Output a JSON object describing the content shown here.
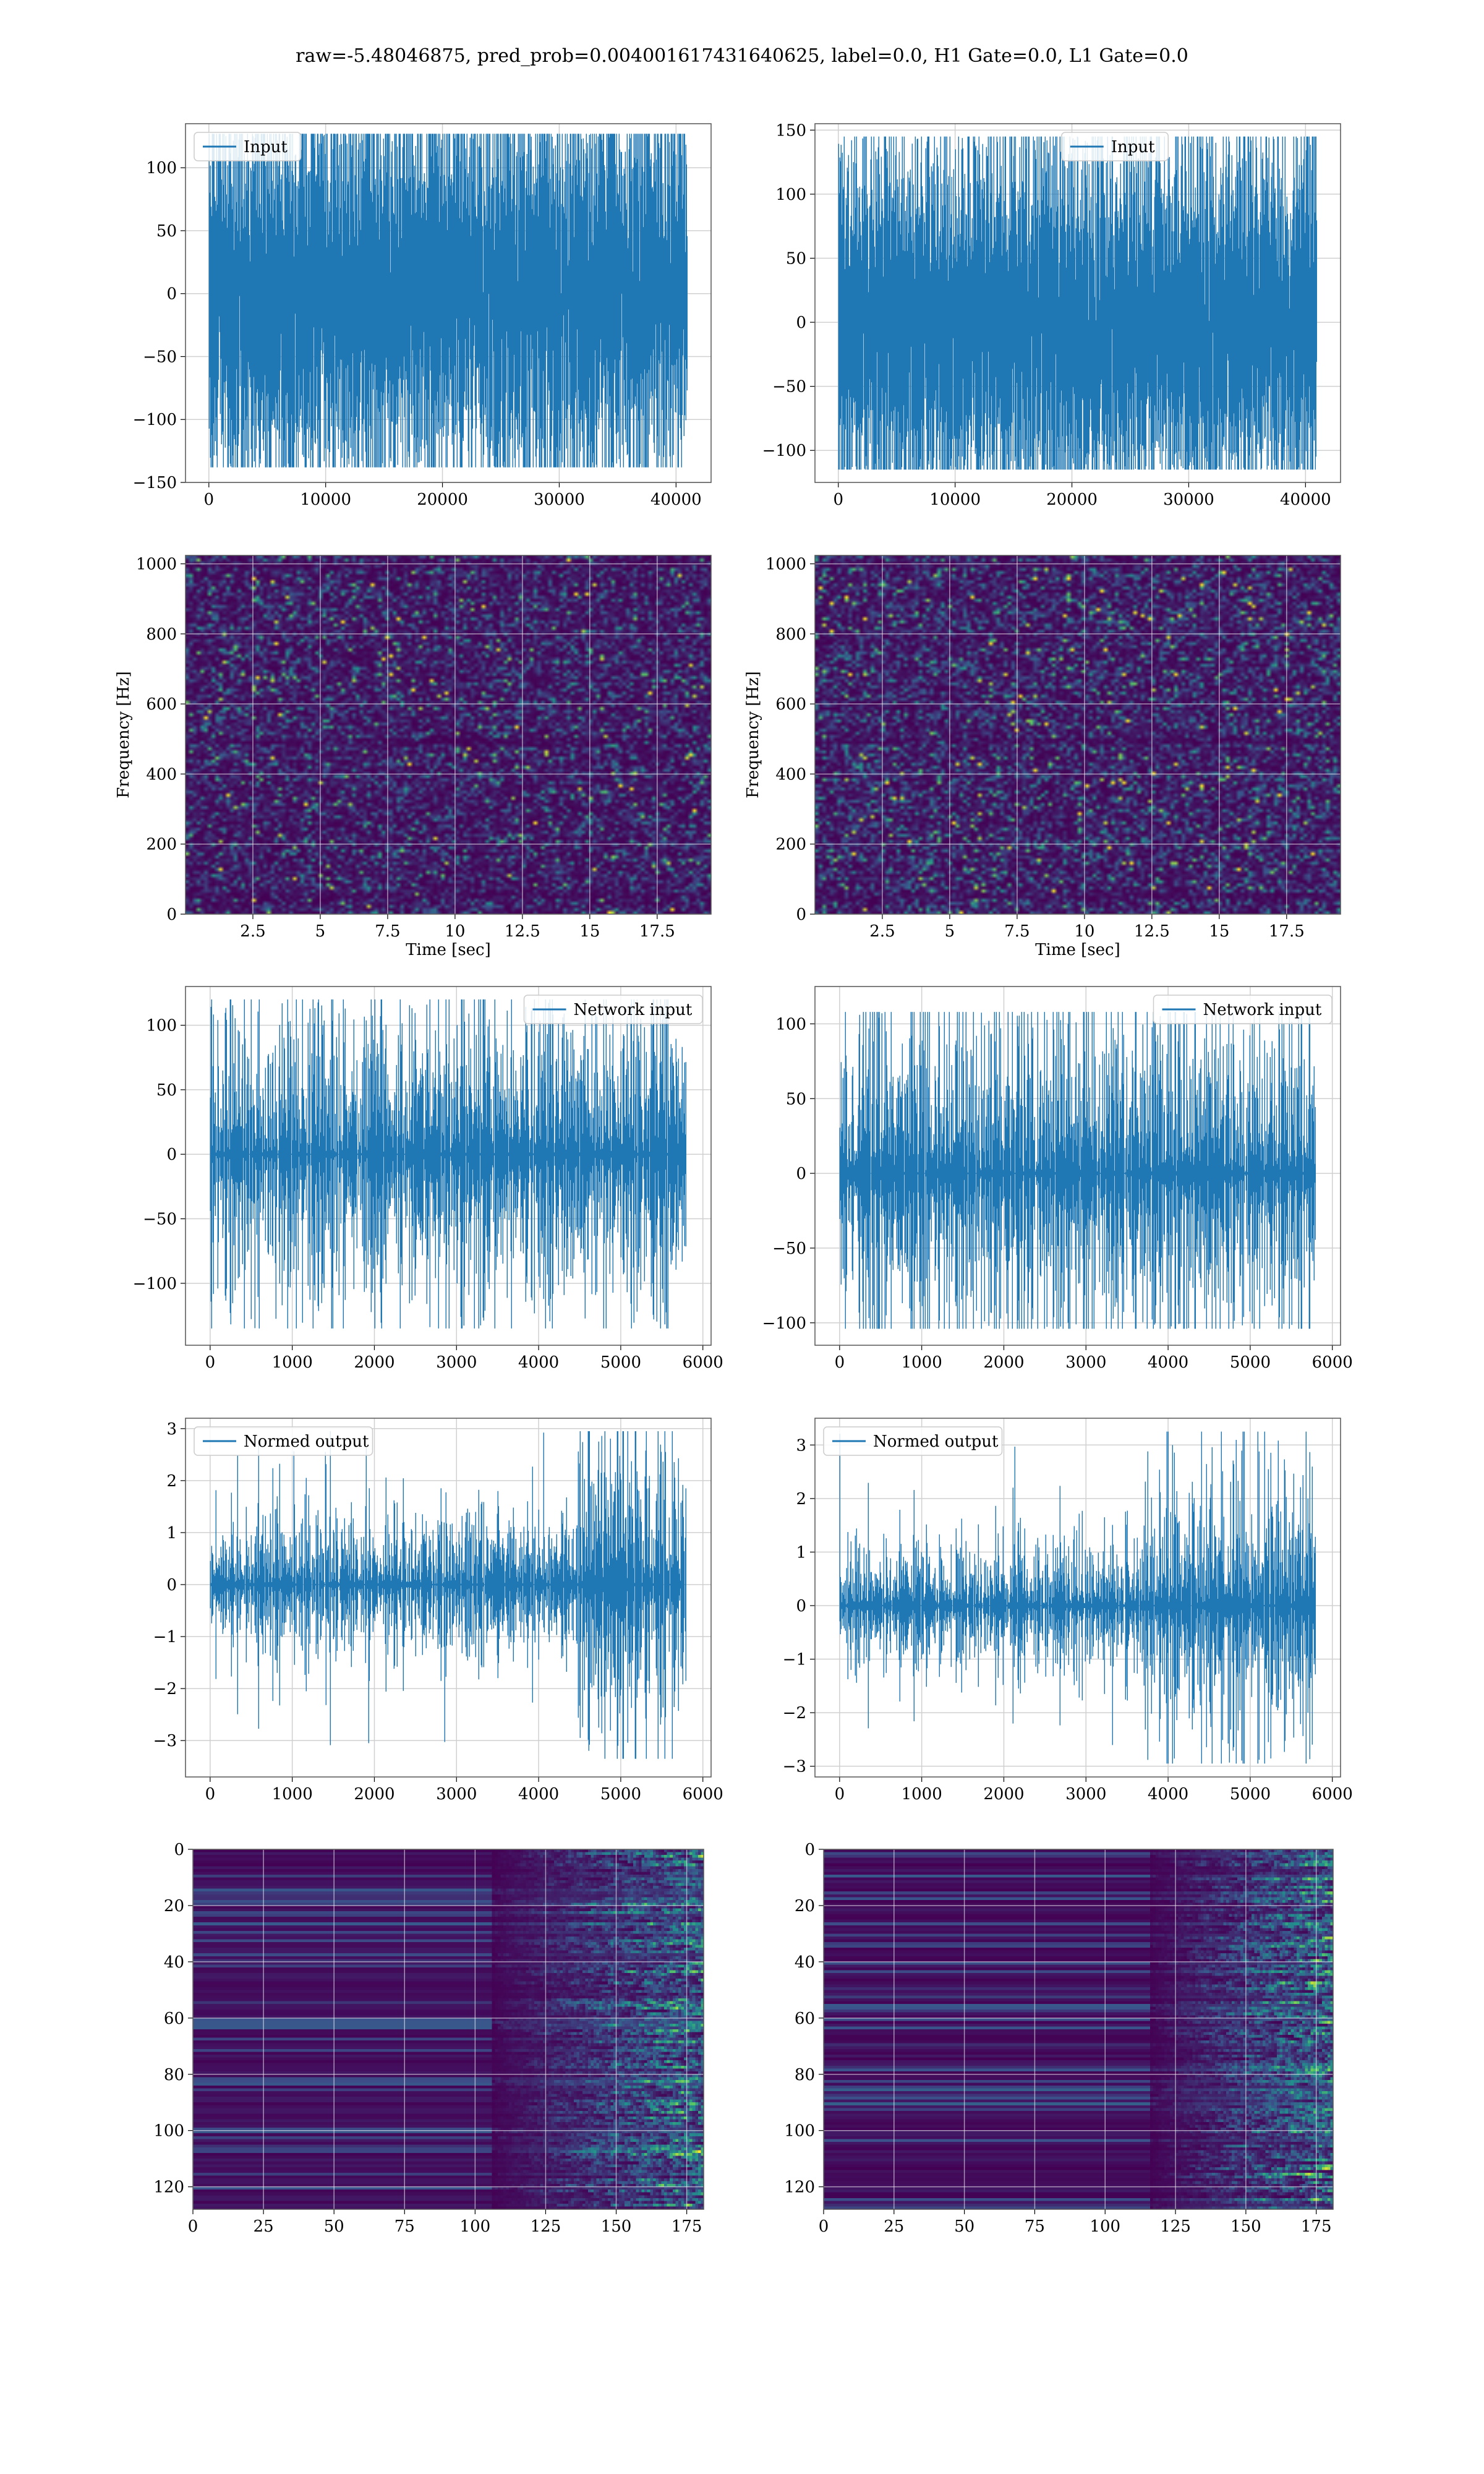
{
  "figure": {
    "title": "raw=-5.48046875, pred_prob=0.004001617431640625, label=0.0, H1 Gate=0.0, L1 Gate=0.0"
  },
  "colors": {
    "line": "#1f77b4",
    "grid": "#d0d0d0",
    "frame": "#555555"
  },
  "chart_data": [
    {
      "id": "input-h1",
      "type": "line",
      "legend": "Input",
      "legend_loc": "upper left",
      "xlim": [
        -2000,
        43000
      ],
      "ylim": [
        -150,
        135
      ],
      "xticks": [
        0,
        10000,
        20000,
        30000,
        40000
      ],
      "yticks": [
        -150,
        -100,
        -50,
        0,
        50,
        100
      ],
      "series": [
        {
          "name": "Input",
          "n": 41000,
          "std": 38,
          "peak_max": 127,
          "peak_min": -138
        }
      ]
    },
    {
      "id": "input-l1",
      "type": "line",
      "legend": "Input",
      "legend_loc": "upper center",
      "xlim": [
        -2000,
        43000
      ],
      "ylim": [
        -125,
        155
      ],
      "xticks": [
        0,
        10000,
        20000,
        30000,
        40000
      ],
      "yticks": [
        -100,
        -50,
        0,
        50,
        100,
        150
      ],
      "series": [
        {
          "name": "Input",
          "n": 41000,
          "std": 36,
          "peak_max": 145,
          "peak_min": -115
        }
      ]
    },
    {
      "id": "spec-h1",
      "type": "heatmap",
      "colormap": "viridis",
      "xlabel": "Time [sec]",
      "ylabel": "Frequency [Hz]",
      "xlim": [
        0,
        19.5
      ],
      "ylim": [
        0,
        1024
      ],
      "xticks": [
        2.5,
        5.0,
        7.5,
        10.0,
        12.5,
        15.0,
        17.5
      ],
      "yticks": [
        0,
        200,
        400,
        600,
        800,
        1000
      ]
    },
    {
      "id": "spec-l1",
      "type": "heatmap",
      "colormap": "viridis",
      "xlabel": "Time [sec]",
      "ylabel": "Frequency [Hz]",
      "xlim": [
        0,
        19.5
      ],
      "ylim": [
        0,
        1024
      ],
      "xticks": [
        2.5,
        5.0,
        7.5,
        10.0,
        12.5,
        15.0,
        17.5
      ],
      "yticks": [
        0,
        200,
        400,
        600,
        800,
        1000
      ]
    },
    {
      "id": "network-h1",
      "type": "line",
      "legend": "Network input",
      "legend_loc": "upper right",
      "xlim": [
        -300,
        6100
      ],
      "ylim": [
        -148,
        130
      ],
      "xticks": [
        0,
        1000,
        2000,
        3000,
        4000,
        5000,
        6000
      ],
      "yticks": [
        -100,
        -50,
        0,
        50,
        100
      ],
      "series": [
        {
          "name": "Network input",
          "n": 5800,
          "std": 33,
          "peak_max": 120,
          "peak_min": -135
        }
      ]
    },
    {
      "id": "network-l1",
      "type": "line",
      "legend": "Network input",
      "legend_loc": "upper right",
      "xlim": [
        -300,
        6100
      ],
      "ylim": [
        -115,
        125
      ],
      "xticks": [
        0,
        1000,
        2000,
        3000,
        4000,
        5000,
        6000
      ],
      "yticks": [
        -100,
        -50,
        0,
        50,
        100
      ],
      "series": [
        {
          "name": "Network input",
          "n": 5800,
          "std": 30,
          "peak_max": 108,
          "peak_min": -104
        }
      ]
    },
    {
      "id": "normed-h1",
      "type": "line",
      "legend": "Normed output",
      "legend_loc": "upper left",
      "xlim": [
        -300,
        6100
      ],
      "ylim": [
        -3.7,
        3.2
      ],
      "xticks": [
        0,
        1000,
        2000,
        3000,
        4000,
        5000,
        6000
      ],
      "yticks": [
        -3,
        -2,
        -1,
        0,
        1,
        2,
        3
      ],
      "series": [
        {
          "name": "Normed output",
          "n": 5800,
          "std": 0.38,
          "burst_start": 4750,
          "burst_std": 0.85,
          "peak_max": 2.95,
          "peak_min": -3.35
        }
      ]
    },
    {
      "id": "normed-l1",
      "type": "line",
      "legend": "Normed output",
      "legend_loc": "upper left",
      "xlim": [
        -300,
        6100
      ],
      "ylim": [
        -3.2,
        3.5
      ],
      "xticks": [
        0,
        1000,
        2000,
        3000,
        4000,
        5000,
        6000
      ],
      "yticks": [
        -3,
        -2,
        -1,
        0,
        1,
        2,
        3
      ],
      "series": [
        {
          "name": "Normed output",
          "n": 5800,
          "std": 0.33,
          "burst_start": 4000,
          "burst_std": 0.75,
          "peak_max": 3.25,
          "peak_min": -2.95
        }
      ]
    },
    {
      "id": "features-h1",
      "type": "heatmap",
      "colormap": "viridis",
      "xlim": [
        0,
        181
      ],
      "ylim": [
        128,
        0
      ],
      "xticks": [
        0,
        25,
        50,
        75,
        100,
        125,
        150,
        175
      ],
      "yticks": [
        0,
        20,
        40,
        60,
        80,
        100,
        120
      ],
      "active_from": 105
    },
    {
      "id": "features-l1",
      "type": "heatmap",
      "colormap": "viridis",
      "xlim": [
        0,
        181
      ],
      "ylim": [
        128,
        0
      ],
      "xticks": [
        0,
        25,
        50,
        75,
        100,
        125,
        150,
        175
      ],
      "yticks": [
        0,
        20,
        40,
        60,
        80,
        100,
        120
      ],
      "active_from": 115
    }
  ]
}
